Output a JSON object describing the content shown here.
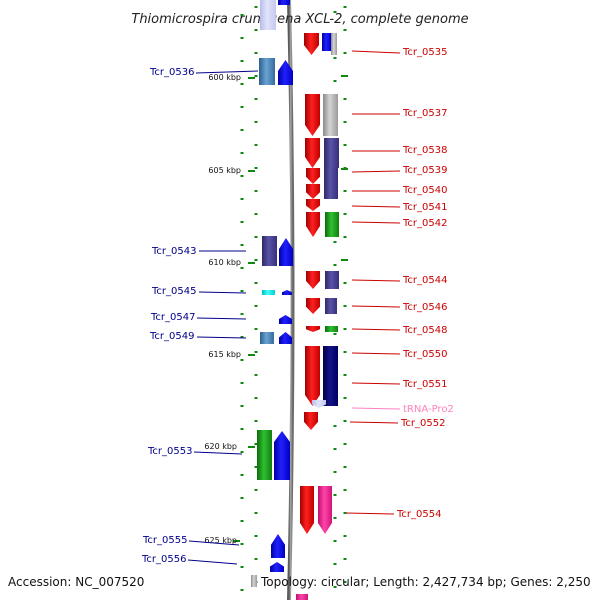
{
  "title": "Thiomicrospira crunogena XCL-2, complete genome",
  "footer": {
    "accession": "Accession: NC_007520",
    "topology": "Topology: circular; Length: 2,427,734 bp; Genes: 2,250"
  },
  "colors": {
    "left_label": "#00008b",
    "right_label": "#cc0000",
    "trna_label": "#ff80c0",
    "backbone": "#888888",
    "dots": "#118811"
  },
  "ticks": [
    "600 kbp",
    "605 kbp",
    "610 kbp",
    "615 kbp",
    "620 kbp",
    "625 kbp"
  ],
  "left_labels": [
    "Tcr_0536",
    "Tcr_0543",
    "Tcr_0545",
    "Tcr_0547",
    "Tcr_0549",
    "Tcr_0553",
    "Tcr_0555",
    "Tcr_0556"
  ],
  "right_labels": [
    "Tcr_0535",
    "Tcr_0537",
    "Tcr_0538",
    "Tcr_0539",
    "Tcr_0540",
    "Tcr_0541",
    "Tcr_0542",
    "Tcr_0544",
    "Tcr_0546",
    "Tcr_0548",
    "Tcr_0550",
    "Tcr_0551",
    "tRNA-Pro2",
    "Tcr_0552",
    "Tcr_0554"
  ]
}
